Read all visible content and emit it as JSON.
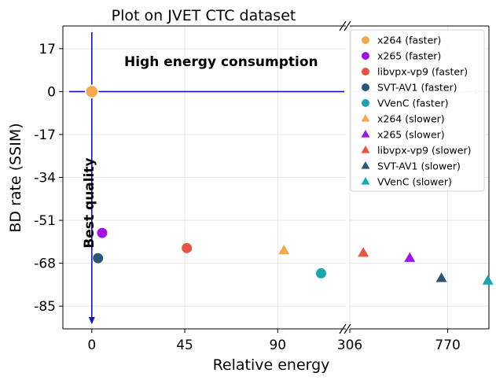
{
  "chart_data": {
    "type": "scatter",
    "title": "Plot on JVET CTC dataset",
    "xlabel": "Relative energy",
    "ylabel": "BD rate (SSIM)",
    "broken_x_axis": true,
    "left_panel": {
      "xlim": [
        -14,
        123
      ],
      "xticks": [
        0,
        45,
        90
      ],
      "xtick_labels": [
        "0",
        "45",
        "90"
      ]
    },
    "right_panel": {
      "xlim": [
        306,
        965
      ],
      "xticks": [
        306,
        770
      ],
      "xtick_labels": [
        "306",
        "770"
      ]
    },
    "ylim": [
      -94,
      26
    ],
    "yticks": [
      17,
      0,
      -17,
      -34,
      -51,
      -68,
      -85
    ],
    "ytick_labels": [
      "17",
      "0",
      "-17",
      "-34",
      "-51",
      "-68",
      "-85"
    ],
    "grid": true,
    "legend_position": "top-right",
    "reference_point": {
      "x": 0,
      "y": 0,
      "color": "#f4a94e"
    },
    "annotations": {
      "horizontal_arrow": "High energy consumption",
      "vertical_arrow": "Best quality"
    },
    "series": [
      {
        "name": "x264 (faster)",
        "marker": "circle",
        "color": "#f4a94e",
        "points": []
      },
      {
        "name": "x265 (faster)",
        "marker": "circle",
        "color": "#a114e8",
        "points": [
          {
            "x": 5,
            "y": -56
          }
        ]
      },
      {
        "name": "libvpx-vp9 (faster)",
        "marker": "circle",
        "color": "#e8553f",
        "points": [
          {
            "x": 46,
            "y": -62
          }
        ]
      },
      {
        "name": "SVT-AV1 (faster)",
        "marker": "circle",
        "color": "#2c5676",
        "points": [
          {
            "x": 3,
            "y": -66
          }
        ]
      },
      {
        "name": "VVenC (faster)",
        "marker": "circle",
        "color": "#18a6b0",
        "points": [
          {
            "x": 111,
            "y": -72
          }
        ]
      },
      {
        "name": "x264 (slower)",
        "marker": "triangle",
        "color": "#f4a94e",
        "points": [
          {
            "x": 93,
            "y": -63
          }
        ]
      },
      {
        "name": "x265 (slower)",
        "marker": "triangle",
        "color": "#a114e8",
        "points": [
          {
            "x": 590,
            "y": -66
          }
        ]
      },
      {
        "name": "libvpx-vp9 (slower)",
        "marker": "triangle",
        "color": "#e8553f",
        "points": [
          {
            "x": 370,
            "y": -64
          }
        ]
      },
      {
        "name": "SVT-AV1 (slower)",
        "marker": "triangle",
        "color": "#2c5676",
        "points": [
          {
            "x": 740,
            "y": -74
          }
        ]
      },
      {
        "name": "VVenC (slower)",
        "marker": "triangle",
        "color": "#18a6b0",
        "points": [
          {
            "x": 960,
            "y": -75
          }
        ]
      }
    ]
  }
}
